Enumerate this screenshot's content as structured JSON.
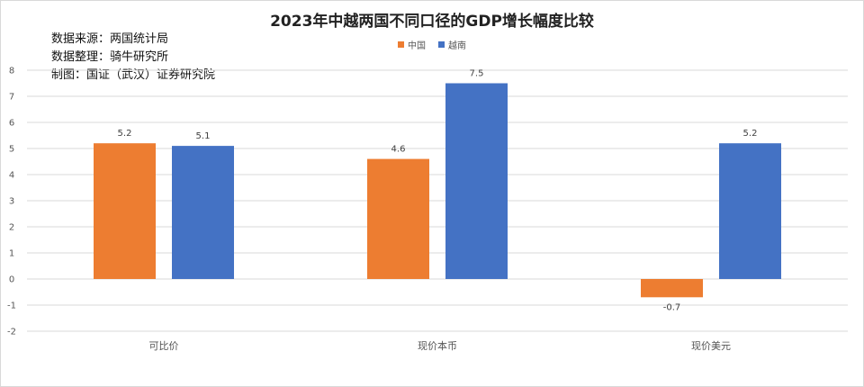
{
  "chart_data": {
    "type": "bar",
    "title": "2023年中越两国不同口径的GDP增长幅度比较",
    "notes": [
      "数据来源：两国统计局",
      "数据整理：骑牛研究所",
      "制图：国证（武汉）证券研究院"
    ],
    "categories": [
      "可比价",
      "现价本币",
      "现价美元"
    ],
    "series": [
      {
        "name": "中国",
        "color": "#ED7D31",
        "values": [
          5.2,
          4.6,
          -0.7
        ]
      },
      {
        "name": "越南",
        "color": "#4472C4",
        "values": [
          5.1,
          7.5,
          5.2
        ]
      }
    ],
    "ylim": [
      -2,
      8
    ],
    "yticks": [
      -2,
      -1,
      0,
      1,
      2,
      3,
      4,
      5,
      6,
      7,
      8
    ],
    "grid": true,
    "legend_position": "top-center"
  }
}
